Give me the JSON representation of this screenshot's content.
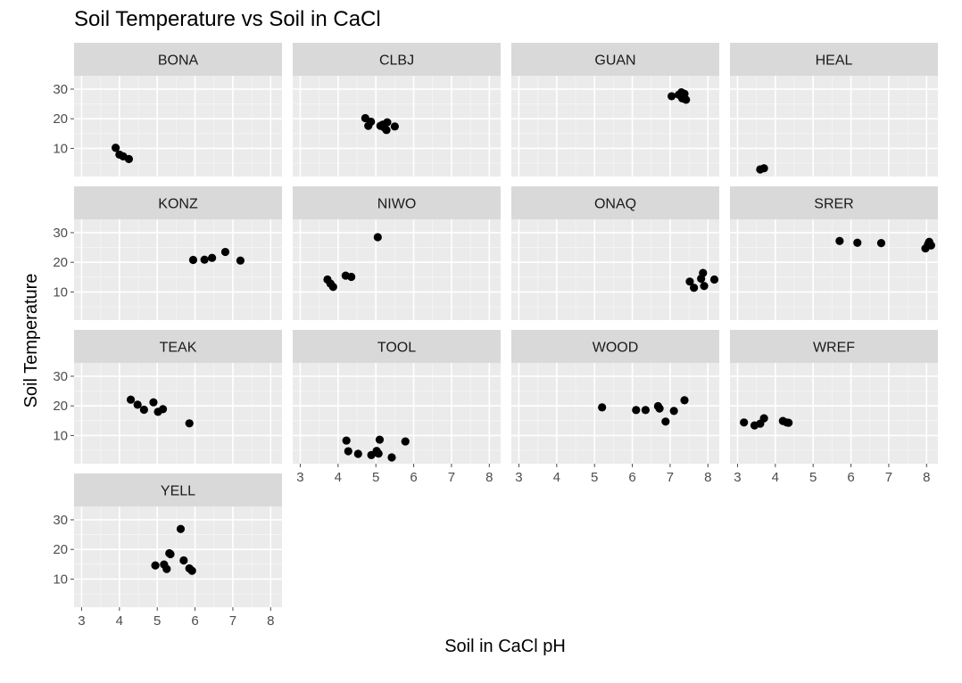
{
  "chart_data": {
    "type": "scatter",
    "title": "Soil Temperature vs Soil in CaCl",
    "xlabel": "Soil in CaCl pH",
    "ylabel": "Soil Temperature",
    "xlim": [
      2.8,
      8.3
    ],
    "ylim": [
      0.5,
      34.5
    ],
    "xticks": [
      3,
      4,
      5,
      6,
      7,
      8
    ],
    "yticks": [
      10,
      20,
      30
    ],
    "grid": true,
    "facets": [
      {
        "name": "BONA",
        "points": [
          [
            3.9,
            10.2
          ],
          [
            4.0,
            7.9
          ],
          [
            4.1,
            7.3
          ],
          [
            4.25,
            6.4
          ]
        ]
      },
      {
        "name": "CLBJ",
        "points": [
          [
            4.72,
            20.2
          ],
          [
            4.8,
            17.6
          ],
          [
            4.87,
            19.0
          ],
          [
            5.12,
            17.6
          ],
          [
            5.18,
            18.0
          ],
          [
            5.22,
            17.1
          ],
          [
            5.28,
            16.2
          ],
          [
            5.3,
            18.8
          ],
          [
            5.5,
            17.4
          ]
        ]
      },
      {
        "name": "GUAN",
        "points": [
          [
            7.04,
            27.6
          ],
          [
            7.23,
            28.1
          ],
          [
            7.3,
            28.9
          ],
          [
            7.32,
            26.9
          ],
          [
            7.38,
            28.4
          ],
          [
            7.42,
            26.4
          ]
        ]
      },
      {
        "name": "HEAL",
        "points": [
          [
            3.6,
            2.9
          ],
          [
            3.7,
            3.3
          ]
        ]
      },
      {
        "name": "KONZ",
        "points": [
          [
            5.95,
            20.8
          ],
          [
            6.25,
            20.9
          ],
          [
            6.45,
            21.5
          ],
          [
            6.8,
            23.5
          ],
          [
            7.2,
            20.6
          ]
        ]
      },
      {
        "name": "NIWO",
        "points": [
          [
            3.72,
            14.2
          ],
          [
            3.8,
            12.8
          ],
          [
            3.87,
            11.7
          ],
          [
            4.2,
            15.5
          ],
          [
            4.35,
            15.1
          ],
          [
            5.05,
            28.5
          ]
        ]
      },
      {
        "name": "ONAQ",
        "points": [
          [
            7.52,
            13.5
          ],
          [
            7.63,
            11.4
          ],
          [
            7.82,
            14.5
          ],
          [
            7.87,
            16.4
          ],
          [
            7.9,
            12.0
          ],
          [
            8.17,
            14.2
          ]
        ]
      },
      {
        "name": "SRER",
        "points": [
          [
            5.7,
            27.2
          ],
          [
            6.17,
            26.6
          ],
          [
            6.8,
            26.5
          ],
          [
            7.97,
            24.7
          ],
          [
            8.04,
            26.1
          ],
          [
            8.07,
            26.9
          ],
          [
            8.12,
            25.7
          ]
        ]
      },
      {
        "name": "TEAK",
        "points": [
          [
            4.3,
            22.1
          ],
          [
            4.48,
            20.4
          ],
          [
            4.65,
            18.7
          ],
          [
            4.9,
            21.2
          ],
          [
            5.02,
            18.0
          ],
          [
            5.15,
            18.9
          ],
          [
            5.85,
            14.1
          ]
        ]
      },
      {
        "name": "TOOL",
        "points": [
          [
            4.22,
            8.3
          ],
          [
            4.27,
            4.7
          ],
          [
            4.53,
            3.8
          ],
          [
            4.88,
            3.4
          ],
          [
            5.02,
            4.8
          ],
          [
            5.07,
            3.9
          ],
          [
            5.1,
            8.6
          ],
          [
            5.42,
            2.6
          ],
          [
            5.78,
            8.0
          ]
        ]
      },
      {
        "name": "WOOD",
        "points": [
          [
            5.2,
            19.5
          ],
          [
            6.1,
            18.6
          ],
          [
            6.35,
            18.6
          ],
          [
            6.68,
            19.9
          ],
          [
            6.72,
            19.1
          ],
          [
            6.88,
            14.7
          ],
          [
            7.1,
            18.3
          ],
          [
            7.38,
            21.9
          ]
        ]
      },
      {
        "name": "WREF",
        "points": [
          [
            3.17,
            14.4
          ],
          [
            3.45,
            13.4
          ],
          [
            3.6,
            14.0
          ],
          [
            3.7,
            15.8
          ],
          [
            4.2,
            14.9
          ],
          [
            4.3,
            14.4
          ],
          [
            4.35,
            14.3
          ]
        ]
      },
      {
        "name": "YELL",
        "points": [
          [
            4.95,
            14.6
          ],
          [
            5.18,
            14.9
          ],
          [
            5.25,
            13.4
          ],
          [
            5.32,
            18.7
          ],
          [
            5.35,
            18.4
          ],
          [
            5.62,
            26.9
          ],
          [
            5.7,
            16.3
          ],
          [
            5.85,
            13.6
          ],
          [
            5.92,
            12.8
          ]
        ]
      }
    ]
  }
}
